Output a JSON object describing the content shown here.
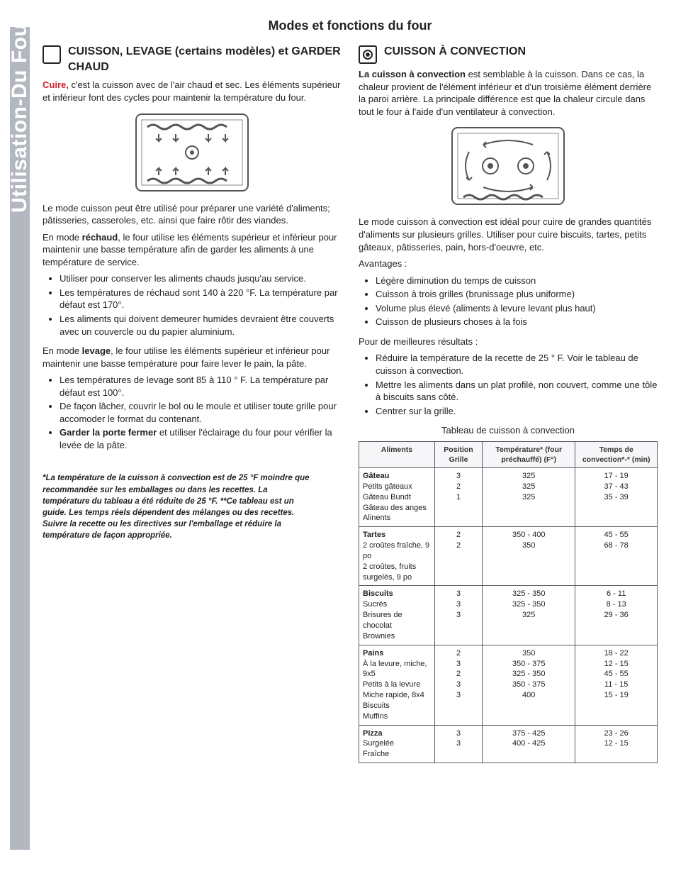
{
  "sidebar": {
    "label": "Utilisation-Du Four"
  },
  "title": "Modes et fonctions du four",
  "left": {
    "heading": "CUISSON, LEVAGE (certains modèles) et GARDER CHAUD",
    "cuire_lead": "Cuire,",
    "cuire_rest": " c'est la cuisson avec de l'air chaud et sec. Les éléments supérieur et inférieur font des cycles pour maintenir la température du four.",
    "p2": "Le mode cuisson peut être utilisé pour préparer une variété d'aliments; pâtisseries, casseroles, etc. ainsi que faire rôtir des viandes.",
    "rechaud_pre": "En mode ",
    "rechaud_bold": "réchaud",
    "rechaud_post": ", le four utilise les éléments supérieur et inférieur pour maintenir une basse température afin de garder les aliments à une température de service.",
    "rechaud_items": [
      "Utiliser pour conserver les aliments chauds jusqu'au service.",
      "Les températures de réchaud sont 140 à 220 °F. La température par défaut est 170°.",
      "Les aliments qui doivent demeurer humides devraient être couverts avec un couvercle ou du papier aluminium."
    ],
    "levage_pre": "En mode ",
    "levage_bold": "levage",
    "levage_post": ", le four utilise les éléments supérieur et inférieur pour maintenir une basse température pour faire lever le pain, la pâte.",
    "levage_items_a": "Les températures de levage sont 85 à 110 ° F. La température par défaut est 100°.",
    "levage_items_b": "De façon lâcher, couvrir le bol ou le moule et utiliser toute grille pour accomoder le format du contenant.",
    "levage_items_c_lead": "Garder la porte fermer",
    "levage_items_c_rest": " et utiliser l'éclairage du four pour vérifier la levée de la pâte.",
    "footnote": "*La température de la cuisson à convection est de 25 °F moindre que recommandée sur les emballages ou dans les recettes. La température du tableau a été réduite de 25 °F. **Ce tableau est un guide. Les temps réels dépendent des mélanges ou des recettes. Suivre la recette ou les directives sur l'emballage et réduire la température de façon appropriée."
  },
  "right": {
    "heading": "CUISSON À CONVECTION",
    "intro_lead": "La cuisson à convection",
    "intro_rest": " est semblable à la cuisson. Dans ce cas, la chaleur provient de l'élément inférieur et d'un troisième élément derrière la paroi arrière. La principale différence est que la chaleur circule dans tout le four à l'aide d'un ventilateur à convection.",
    "p2": "Le mode cuisson à convection est idéal pour cuire de grandes quantités d'aliments sur plusieurs grilles. Utiliser pour cuire biscuits, tartes, petits gâteaux, pâtisseries, pain, hors-d'oeuvre, etc.",
    "adv_label": "Avantages :",
    "adv_items": [
      "Légère diminution du temps de cuisson",
      "Cuisson à trois grilles (brunissage plus uniforme)",
      "Volume plus élevé (aliments à levure levant plus haut)",
      "Cuisson de plusieurs choses à la fois"
    ],
    "best_label": "Pour de meilleures résultats :",
    "best_items": [
      "Réduire la température de la recette de 25 ° F. Voir le tableau de cuisson à convection.",
      "Mettre les aliments dans un plat profilé, non couvert, comme une tôle à biscuits sans côté.",
      "Centrer sur la grille."
    ],
    "table_caption": "Tableau de cuisson à convection",
    "table": {
      "headers": [
        "Aliments",
        "Position Grille",
        "Température* (four préchauffé) (F°)",
        "Temps de convection*-* (min)"
      ],
      "groups": [
        {
          "cat": "Gâteau",
          "rows": [
            {
              "f": "Petits gâteaux",
              "p": "3",
              "t": "325",
              "m": "17 - 19"
            },
            {
              "f": "Gâteau Bundt",
              "p": "2",
              "t": "325",
              "m": "37 - 43"
            },
            {
              "f": "Gâteau des anges",
              "p": "1",
              "t": "325",
              "m": "35 - 39"
            },
            {
              "f": "Alinents",
              "p": "",
              "t": "",
              "m": ""
            }
          ]
        },
        {
          "cat": "Tartes",
          "rows": [
            {
              "f": "2 croûtes fraîche, 9 po",
              "p": "2",
              "t": "350 - 400",
              "m": "45 - 55"
            },
            {
              "f": "2 croûtes, fruits surgelés, 9 po",
              "p": "2",
              "t": "350",
              "m": "68 - 78"
            }
          ]
        },
        {
          "cat": "Biscuits",
          "rows": [
            {
              "f": "Sucrés",
              "p": "3",
              "t": "325 - 350",
              "m": "6 - 11"
            },
            {
              "f": "Brisures de chocolat",
              "p": "3",
              "t": "325 - 350",
              "m": "8 - 13"
            },
            {
              "f": "Brownies",
              "p": "3",
              "t": "325",
              "m": "29 - 36"
            }
          ]
        },
        {
          "cat": "Pains",
          "rows": [
            {
              "f": "À la levure, miche, 9x5",
              "p": "2",
              "t": "350",
              "m": "18 - 22"
            },
            {
              "f": "Petits à la levure",
              "p": "3",
              "t": "350 - 375",
              "m": "12 - 15"
            },
            {
              "f": "Miche rapide, 8x4",
              "p": "2",
              "t": "325 - 350",
              "m": "45 - 55"
            },
            {
              "f": "Biscuits",
              "p": "3",
              "t": "350 - 375",
              "m": "11 - 15"
            },
            {
              "f": "Muffins",
              "p": "3",
              "t": "400",
              "m": "15 - 19"
            }
          ]
        },
        {
          "cat": "Pizza",
          "rows": [
            {
              "f": "Surgelée",
              "p": "3",
              "t": "375 - 425",
              "m": "23 - 26"
            },
            {
              "f": "Fraîche",
              "p": "3",
              "t": "400 - 425",
              "m": "12 - 15"
            }
          ]
        }
      ]
    }
  }
}
